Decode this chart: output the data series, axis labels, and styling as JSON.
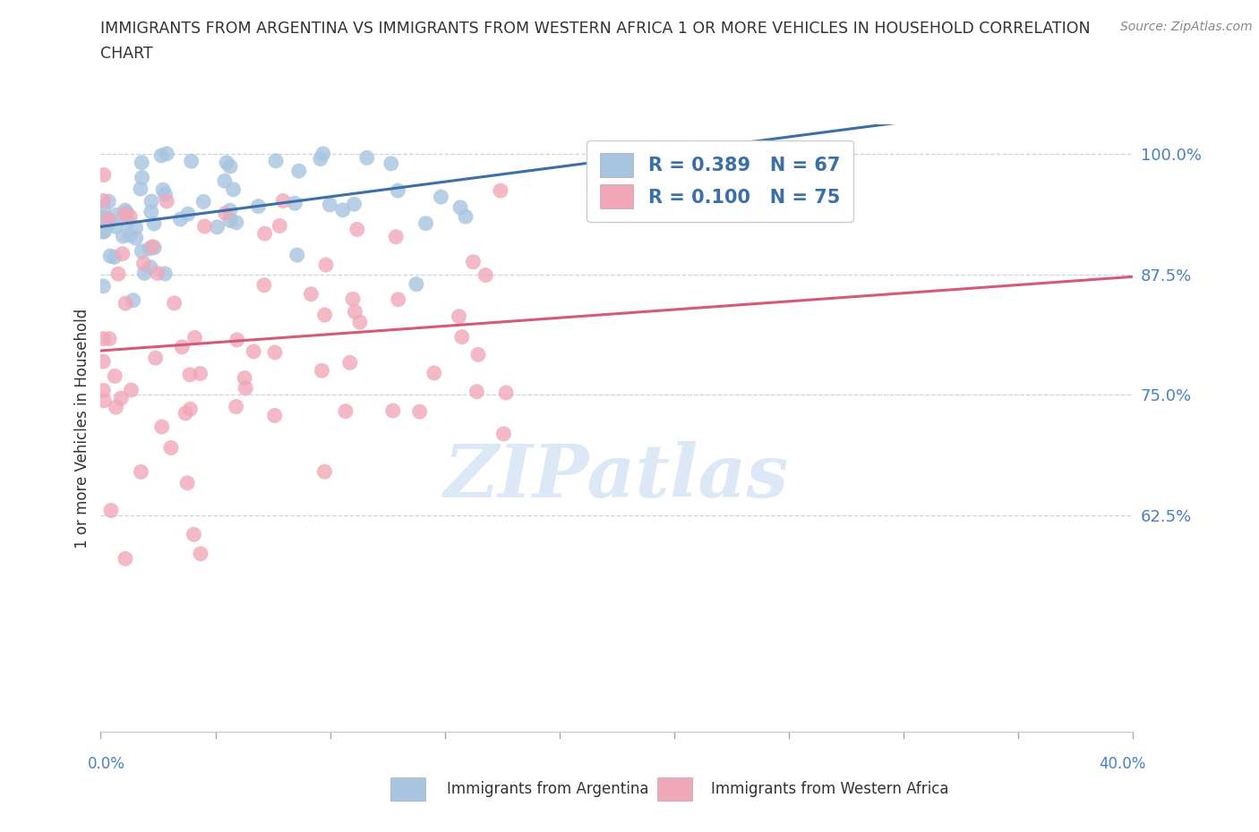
{
  "title_line1": "IMMIGRANTS FROM ARGENTINA VS IMMIGRANTS FROM WESTERN AFRICA 1 OR MORE VEHICLES IN HOUSEHOLD CORRELATION",
  "title_line2": "CHART",
  "source": "Source: ZipAtlas.com",
  "ylabel": "1 or more Vehicles in Household",
  "xmin": 0.0,
  "xmax": 40.0,
  "ymin": 40.0,
  "ymax": 103.0,
  "argentina_color": "#a8c4e0",
  "western_africa_color": "#f0a8b8",
  "argentina_line_color": "#3a6fa8",
  "western_africa_line_color": "#d45a78",
  "argentina_R": 0.389,
  "argentina_N": 67,
  "western_africa_R": 0.1,
  "western_africa_N": 75,
  "background_color": "#ffffff",
  "watermark_color": "#dce8f5",
  "grid_color": "#c8d4e4",
  "ytick_vals": [
    62.5,
    75.0,
    87.5,
    100.0
  ],
  "legend_text_color": "#3a6fa8",
  "title_color": "#333333",
  "source_color": "#888888",
  "bottom_label_color": "#333333",
  "axis_label_color": "#333333",
  "tick_label_color": "#4a7fc4"
}
